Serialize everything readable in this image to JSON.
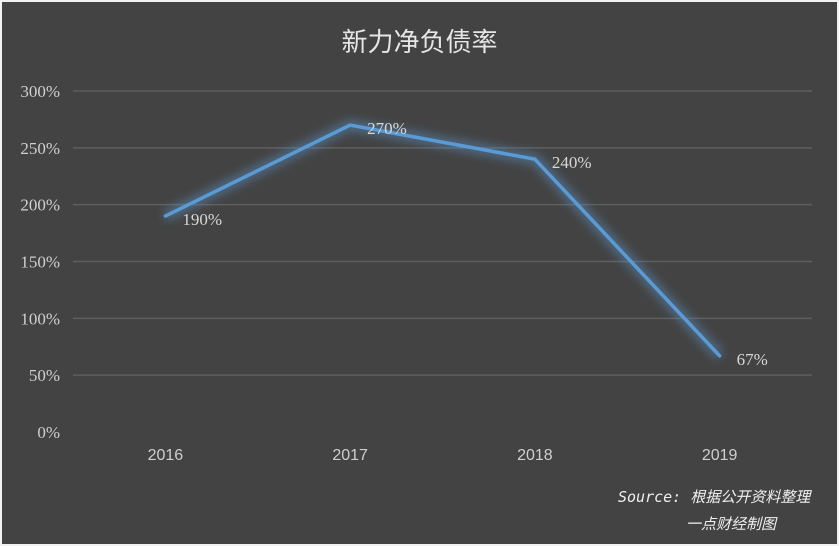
{
  "chart_data": {
    "type": "line",
    "title": "新力净负债率",
    "categories": [
      "2016",
      "2017",
      "2018",
      "2019"
    ],
    "values": [
      190,
      270,
      240,
      67
    ],
    "data_labels": [
      "190%",
      "270%",
      "240%",
      "67%"
    ],
    "yticks": [
      "0%",
      "50%",
      "100%",
      "150%",
      "200%",
      "250%",
      "300%"
    ],
    "ylim": [
      0,
      300
    ],
    "grid": true,
    "line_color": "#5b9bd5",
    "background": "#434343"
  },
  "source": {
    "line1": "Source: 根据公开资料整理",
    "line2": "一点财经制图"
  }
}
